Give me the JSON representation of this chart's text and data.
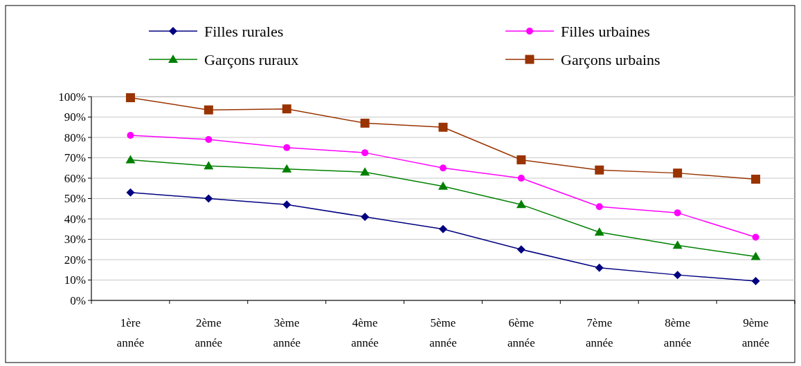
{
  "chart_data": {
    "type": "line",
    "categories": [
      "1ère année",
      "2ème année",
      "3ème année",
      "4ème année",
      "5ème année",
      "6ème année",
      "7ème année",
      "8ème année",
      "9ème année"
    ],
    "series": [
      {
        "name": "Filles rurales",
        "color": "#000080",
        "marker": "diamond",
        "values": [
          53,
          50,
          47,
          41,
          35,
          25,
          16,
          12.5,
          9.5
        ]
      },
      {
        "name": "Filles urbaines",
        "color": "#ff00ff",
        "marker": "circle",
        "values": [
          81,
          79,
          75,
          72.5,
          65,
          60,
          46,
          43,
          31
        ]
      },
      {
        "name": "Garçons ruraux",
        "color": "#008000",
        "marker": "triangle",
        "values": [
          69,
          66,
          64.5,
          63,
          56,
          47,
          33.5,
          27,
          21.5
        ]
      },
      {
        "name": "Garçons urbains",
        "color": "#993300",
        "marker": "square",
        "values": [
          99.5,
          93.5,
          94,
          87,
          85,
          69,
          64,
          62.5,
          59.5
        ]
      }
    ],
    "ylim": [
      0,
      100
    ],
    "yticks": [
      {
        "value": 0,
        "label": "0%"
      },
      {
        "value": 10,
        "label": "10%"
      },
      {
        "value": 20,
        "label": "20%"
      },
      {
        "value": 30,
        "label": "30%"
      },
      {
        "value": 40,
        "label": "40%"
      },
      {
        "value": 50,
        "label": "50%"
      },
      {
        "value": 60,
        "label": "60%"
      },
      {
        "value": 70,
        "label": "70%"
      },
      {
        "value": 80,
        "label": "80%"
      },
      {
        "value": 90,
        "label": "90%"
      },
      {
        "value": 100,
        "label": "100%"
      }
    ],
    "grid": "y",
    "legend": "top",
    "line_style": "solid"
  }
}
